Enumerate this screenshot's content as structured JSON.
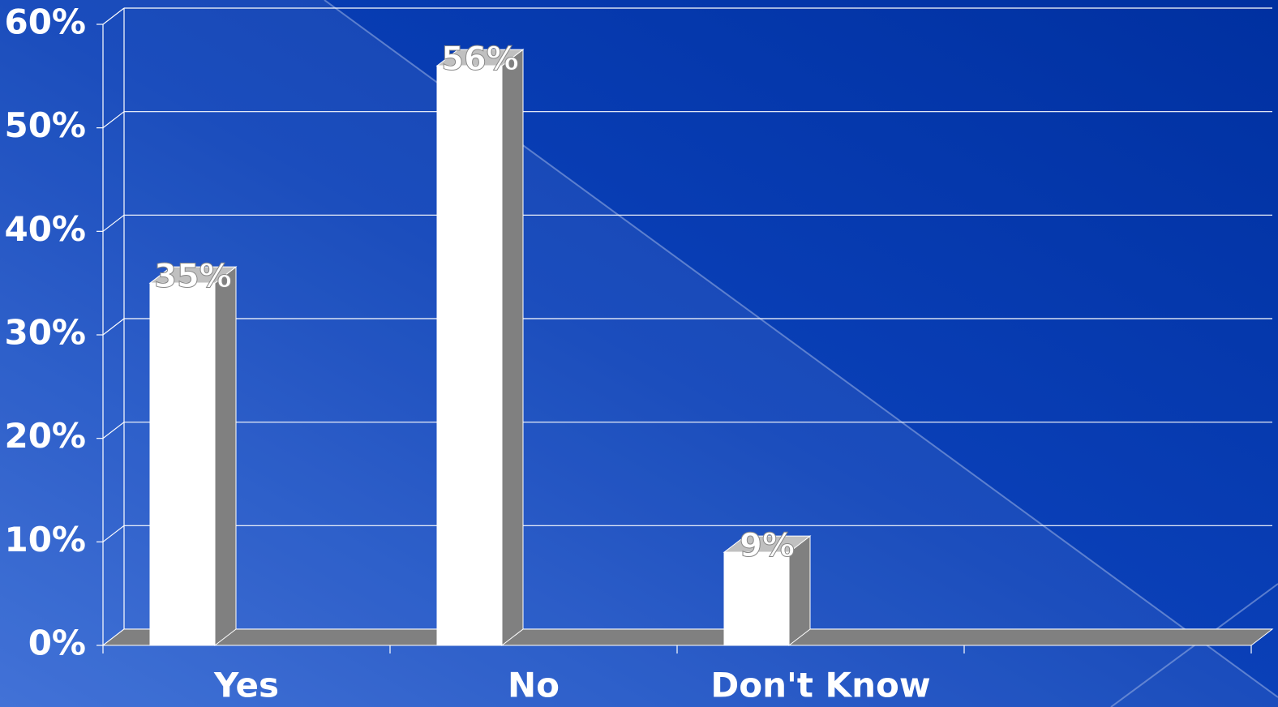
{
  "chart_data": {
    "type": "bar3d",
    "categories": [
      "Yes",
      "No",
      "Don't Know",
      null
    ],
    "values": [
      35,
      56,
      9,
      null
    ],
    "value_labels": [
      "35%",
      "56%",
      "9%",
      null
    ],
    "color": "#ffffff",
    "side_color": "#808080",
    "top_color": "#c0c0c0",
    "ylim": [
      0,
      60
    ],
    "yticks": [
      {
        "value": 0,
        "label": "0%"
      },
      {
        "value": 10,
        "label": "10%"
      },
      {
        "value": 20,
        "label": "20%"
      },
      {
        "value": 30,
        "label": "30%"
      },
      {
        "value": 40,
        "label": "40%"
      },
      {
        "value": 50,
        "label": "50%"
      },
      {
        "value": 60,
        "label": "60%"
      }
    ],
    "grid": true
  }
}
